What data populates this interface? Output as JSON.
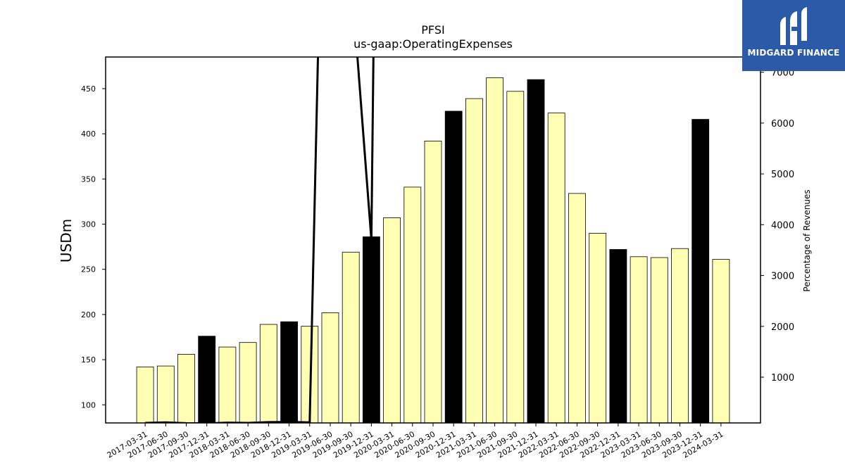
{
  "chart_data": {
    "type": "bar",
    "title": "PFSI",
    "subtitle": "us-gaap:OperatingExpenses",
    "ylabel": "USDm",
    "y2label": "Percentage of Revenues",
    "ylim": [
      80,
      485
    ],
    "y2lim": [
      100,
      7300
    ],
    "yticks": [
      100,
      150,
      200,
      250,
      300,
      350,
      400,
      450
    ],
    "y2ticks": [
      1000,
      2000,
      3000,
      4000,
      5000,
      6000,
      7000
    ],
    "categories": [
      "2017-03-31",
      "2017-06-30",
      "2017-09-30",
      "2017-12-31",
      "2018-03-31",
      "2018-06-30",
      "2018-09-30",
      "2018-12-31",
      "2019-03-31",
      "2019-06-30",
      "2019-09-30",
      "2019-12-31",
      "2020-03-31",
      "2020-06-30",
      "2020-09-30",
      "2020-12-31",
      "2021-03-31",
      "2021-06-30",
      "2021-09-30",
      "2021-12-31",
      "2022-03-31",
      "2022-06-30",
      "2022-09-30",
      "2022-12-31",
      "2023-03-31",
      "2023-06-30",
      "2023-09-30",
      "2023-12-31",
      "2024-03-31"
    ],
    "values": [
      142,
      143,
      156,
      176,
      164,
      169,
      189,
      192,
      187,
      202,
      269,
      286,
      307,
      341,
      392,
      425,
      439,
      462,
      447,
      460,
      423,
      334,
      290,
      272,
      264,
      263,
      273,
      416,
      261
    ],
    "highlight": [
      false,
      false,
      false,
      true,
      false,
      false,
      false,
      true,
      false,
      false,
      false,
      true,
      false,
      false,
      false,
      true,
      false,
      false,
      false,
      true,
      false,
      false,
      false,
      true,
      false,
      false,
      false,
      true,
      false
    ],
    "line_series": {
      "name": "",
      "values": [
        100,
        110,
        95,
        90,
        105,
        100,
        115,
        120,
        110,
        18000,
        9000,
        3700,
        40000,
        null,
        null,
        null,
        null,
        null,
        null,
        null,
        null,
        null,
        null,
        null,
        null,
        null,
        null,
        null,
        null
      ]
    },
    "bar_color": "#ffffb3",
    "highlight_color": "#000000",
    "line_color": "#000000",
    "grid": false,
    "legend": "none"
  },
  "logo": {
    "text": "MIDGARD FINANCE",
    "color": "#2b5aa8"
  }
}
